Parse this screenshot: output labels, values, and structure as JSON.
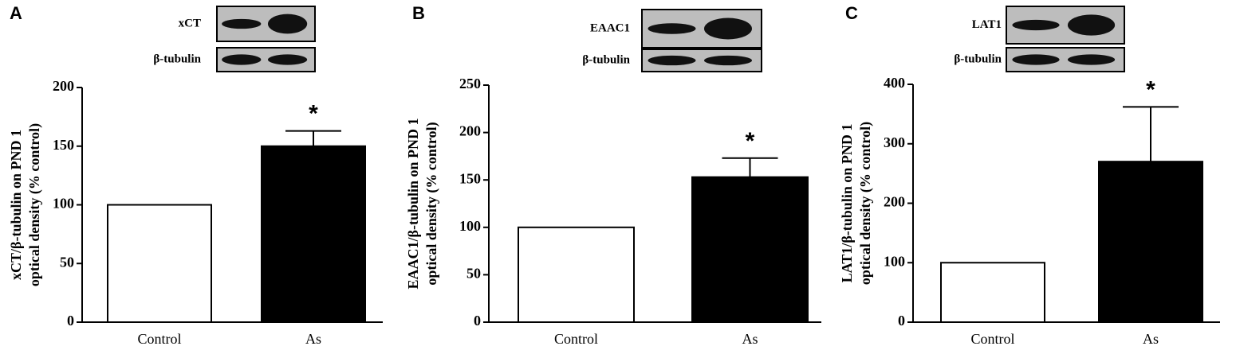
{
  "chart_data": [
    {
      "type": "bar",
      "panel": "A",
      "blot_labels": [
        "xCT",
        "β-tubulin"
      ],
      "y_label": [
        "xCT/β-tubulin on PND 1",
        "optical density (% control)"
      ],
      "categories": [
        "Control",
        "As"
      ],
      "values": [
        100,
        150
      ],
      "errors": [
        null,
        13
      ],
      "significance": [
        null,
        "*"
      ],
      "colors": [
        "#ffffff",
        "#000000"
      ],
      "ylim": [
        0,
        200
      ],
      "yticks": [
        0,
        50,
        100,
        150,
        200
      ]
    },
    {
      "type": "bar",
      "panel": "B",
      "blot_labels": [
        "EAAC1",
        "β-tubulin"
      ],
      "y_label": [
        "EAAC1/β-tubulin on PND 1",
        "optical density (% control)"
      ],
      "categories": [
        "Control",
        "As"
      ],
      "values": [
        100,
        153
      ],
      "errors": [
        null,
        20
      ],
      "significance": [
        null,
        "*"
      ],
      "colors": [
        "#ffffff",
        "#000000"
      ],
      "ylim": [
        0,
        250
      ],
      "yticks": [
        0,
        50,
        100,
        150,
        200,
        250
      ]
    },
    {
      "type": "bar",
      "panel": "C",
      "blot_labels": [
        "LAT1",
        "β-tubulin"
      ],
      "y_label": [
        "LAT1/β-tubulin on PND 1",
        "optical density (% control)"
      ],
      "categories": [
        "Control",
        "As"
      ],
      "values": [
        100,
        270
      ],
      "errors": [
        null,
        92
      ],
      "significance": [
        null,
        "*"
      ],
      "colors": [
        "#ffffff",
        "#000000"
      ],
      "ylim": [
        0,
        400
      ],
      "yticks": [
        0,
        100,
        200,
        300,
        400
      ]
    }
  ]
}
